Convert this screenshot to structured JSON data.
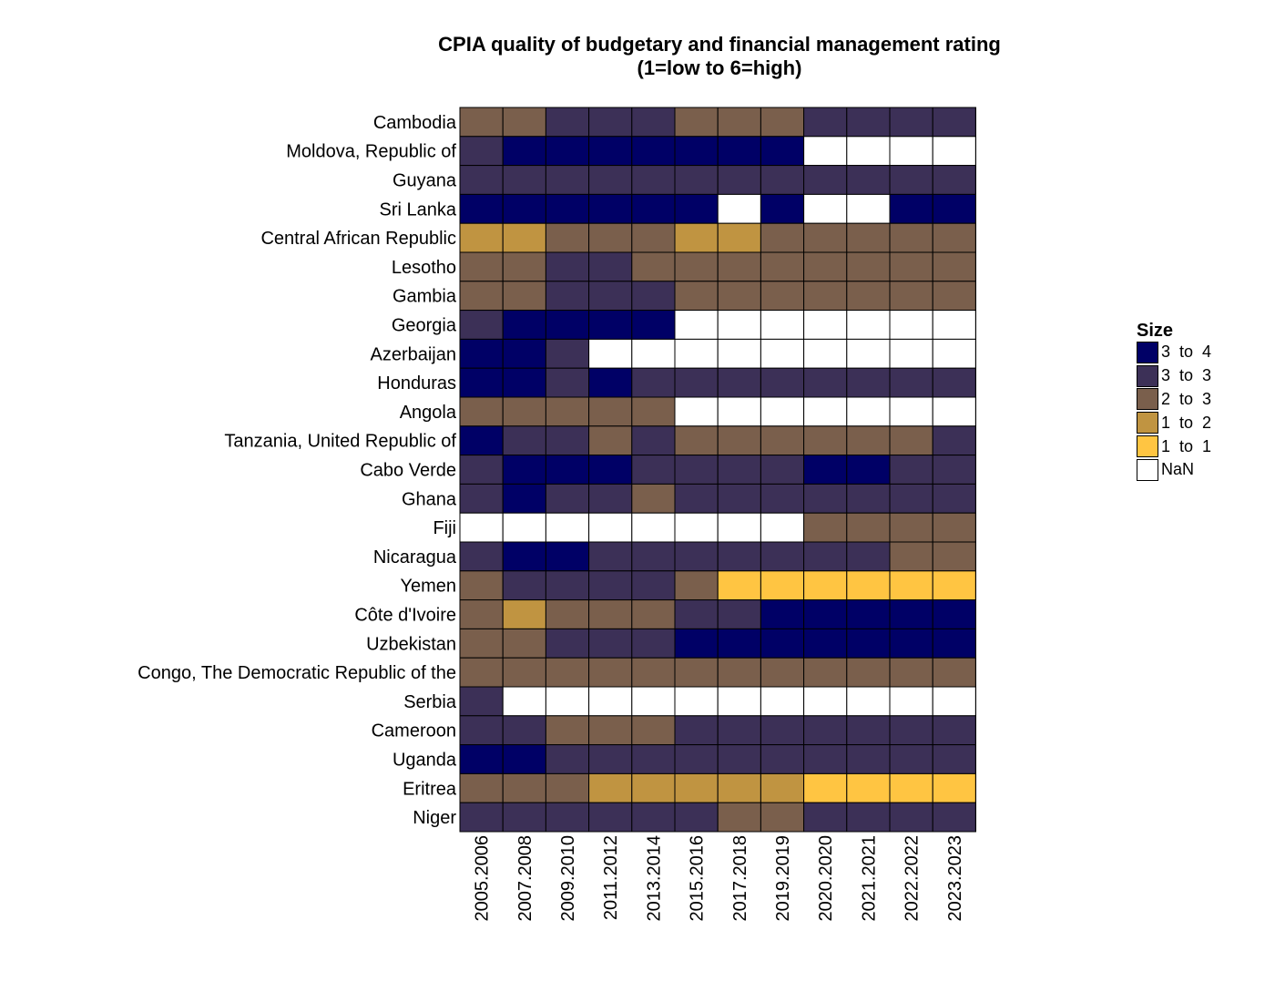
{
  "chart_data": {
    "type": "heatmap",
    "title": "CPIA quality of budgetary and financial management rating",
    "subtitle": "(1=low to 6=high)",
    "legend": {
      "title": "Size",
      "placement": "right",
      "items": [
        {
          "label": "3  to  4",
          "color": "#000066"
        },
        {
          "label": "3  to  3",
          "color": "#3c3057"
        },
        {
          "label": "2  to  3",
          "color": "#7a5f4c"
        },
        {
          "label": "1  to  2",
          "color": "#c09441"
        },
        {
          "label": "1  to  1",
          "color": "#ffc542"
        },
        {
          "label": "NaN",
          "color": "#ffffff"
        }
      ]
    },
    "x_categories": [
      "2005.2006",
      "2007.2008",
      "2009.2010",
      "2011.2012",
      "2013.2014",
      "2015.2016",
      "2017.2018",
      "2019.2019",
      "2020.2020",
      "2021.2021",
      "2022.2022",
      "2023.2023"
    ],
    "y_categories": [
      "Cambodia",
      "Moldova, Republic of",
      "Guyana",
      "Sri Lanka",
      "Central African Republic",
      "Lesotho",
      "Gambia",
      "Georgia",
      "Azerbaijan",
      "Honduras",
      "Angola",
      "Tanzania, United Republic of",
      "Cabo Verde",
      "Ghana",
      "Fiji",
      "Nicaragua",
      "Yemen",
      "Côte d'Ivoire",
      "Uzbekistan",
      "Congo, The Democratic Republic of the",
      "Serbia",
      "Cameroon",
      "Uganda",
      "Eritrea",
      "Niger"
    ],
    "bins_note": "cell values are legend bin indices: 0 = 3 to 4, 1 = 3 to 3, 2 = 2 to 3, 3 = 1 to 2, 4 = 1 to 1, null = NaN",
    "values": [
      [
        2,
        2,
        1,
        1,
        1,
        2,
        2,
        2,
        1,
        1,
        1,
        1
      ],
      [
        1,
        0,
        0,
        0,
        0,
        0,
        0,
        0,
        null,
        null,
        null,
        null
      ],
      [
        1,
        1,
        1,
        1,
        1,
        1,
        1,
        1,
        1,
        1,
        1,
        1
      ],
      [
        0,
        0,
        0,
        0,
        0,
        0,
        null,
        0,
        null,
        null,
        0,
        0
      ],
      [
        3,
        3,
        2,
        2,
        2,
        3,
        3,
        2,
        2,
        2,
        2,
        2
      ],
      [
        2,
        2,
        1,
        1,
        2,
        2,
        2,
        2,
        2,
        2,
        2,
        2
      ],
      [
        2,
        2,
        1,
        1,
        1,
        2,
        2,
        2,
        2,
        2,
        2,
        2
      ],
      [
        1,
        0,
        0,
        0,
        0,
        null,
        null,
        null,
        null,
        null,
        null,
        null
      ],
      [
        0,
        0,
        1,
        null,
        null,
        null,
        null,
        null,
        null,
        null,
        null,
        null
      ],
      [
        0,
        0,
        1,
        0,
        1,
        1,
        1,
        1,
        1,
        1,
        1,
        1
      ],
      [
        2,
        2,
        2,
        2,
        2,
        null,
        null,
        null,
        null,
        null,
        null,
        null
      ],
      [
        0,
        1,
        1,
        2,
        1,
        2,
        2,
        2,
        2,
        2,
        2,
        1
      ],
      [
        1,
        0,
        0,
        0,
        1,
        1,
        1,
        1,
        0,
        0,
        1,
        1
      ],
      [
        1,
        0,
        1,
        1,
        2,
        1,
        1,
        1,
        1,
        1,
        1,
        1
      ],
      [
        null,
        null,
        null,
        null,
        null,
        null,
        null,
        null,
        2,
        2,
        2,
        2
      ],
      [
        1,
        0,
        0,
        1,
        1,
        1,
        1,
        1,
        1,
        1,
        2,
        2
      ],
      [
        2,
        1,
        1,
        1,
        1,
        2,
        4,
        4,
        4,
        4,
        4,
        4
      ],
      [
        2,
        3,
        2,
        2,
        2,
        1,
        1,
        0,
        0,
        0,
        0,
        0
      ],
      [
        2,
        2,
        1,
        1,
        1,
        0,
        0,
        0,
        0,
        0,
        0,
        0
      ],
      [
        2,
        2,
        2,
        2,
        2,
        2,
        2,
        2,
        2,
        2,
        2,
        2
      ],
      [
        1,
        null,
        null,
        null,
        null,
        null,
        null,
        null,
        null,
        null,
        null,
        null
      ],
      [
        1,
        1,
        2,
        2,
        2,
        1,
        1,
        1,
        1,
        1,
        1,
        1
      ],
      [
        0,
        0,
        1,
        1,
        1,
        1,
        1,
        1,
        1,
        1,
        1,
        1
      ],
      [
        2,
        2,
        2,
        3,
        3,
        3,
        3,
        3,
        4,
        4,
        4,
        4
      ],
      [
        1,
        1,
        1,
        1,
        1,
        1,
        2,
        2,
        1,
        1,
        1,
        1
      ]
    ]
  }
}
